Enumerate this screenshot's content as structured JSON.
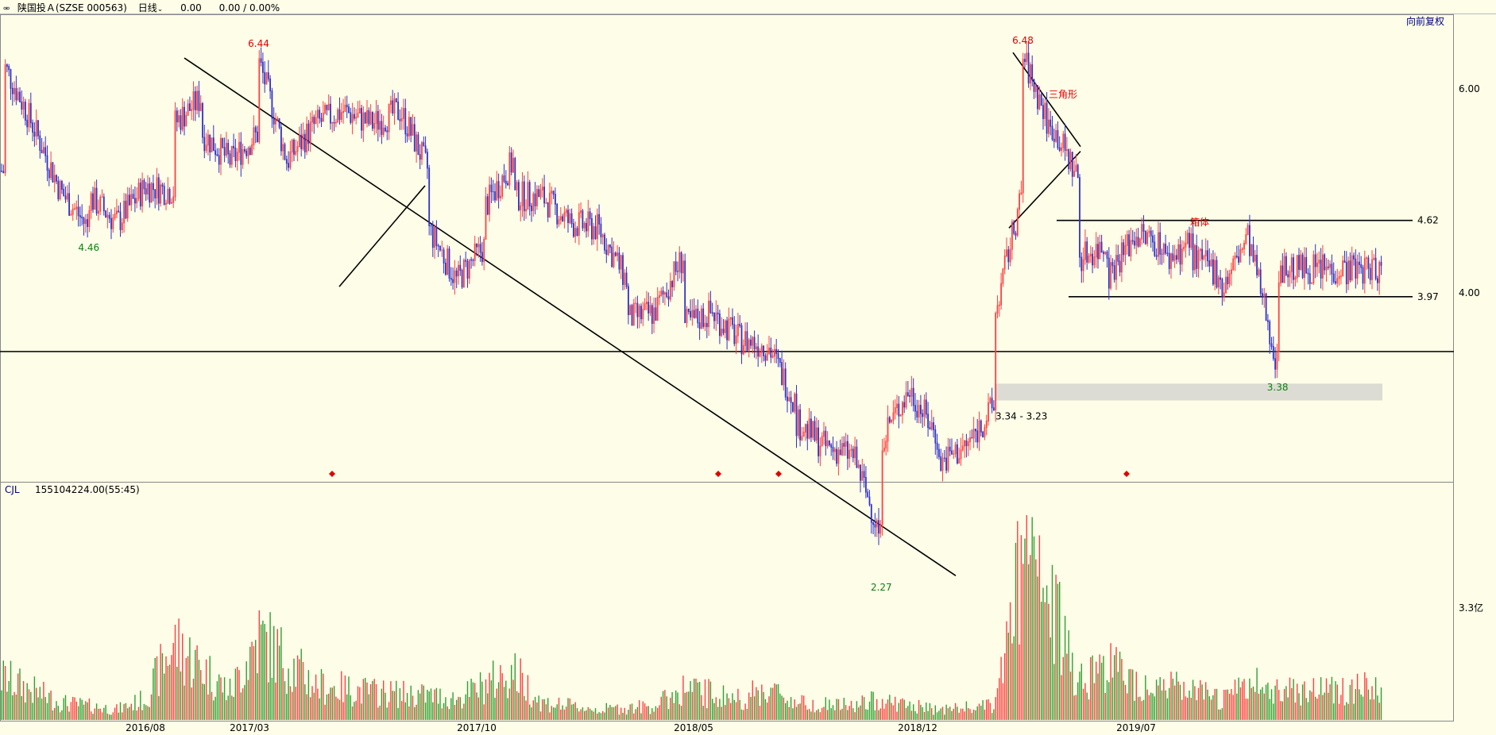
{
  "header": {
    "icon": "chain-link-icon",
    "stock": "陕国投Ａ(SZSE 000563)",
    "period": "日线",
    "change": "0.00",
    "change_pct": "0.00 / 0.00%",
    "adjust": "向前复权"
  },
  "chart_data": [
    {
      "type": "candlestick",
      "title": "陕国投Ａ(SZSE 000563)",
      "x_ticks": [
        "2016/08",
        "2017/03",
        "2017/10",
        "2018/05",
        "2018/12",
        "2019/07"
      ],
      "y_ticks": [
        "6.00",
        "4.00"
      ],
      "ylim": [
        2.0,
        6.8
      ],
      "grid": false,
      "price_labels": [
        {
          "label": "6.44",
          "date": "2016/12",
          "value": 6.44,
          "kind": "high"
        },
        {
          "label": "4.46",
          "date": "2016/06",
          "value": 4.46,
          "kind": "low"
        },
        {
          "label": "6.48",
          "date": "2019/03",
          "value": 6.48,
          "kind": "high"
        },
        {
          "label": "2.27",
          "date": "2018/10",
          "value": 2.27,
          "kind": "low"
        },
        {
          "label": "3.38",
          "date": "2019/12",
          "value": 3.38,
          "kind": "low"
        }
      ],
      "level_labels": [
        {
          "label": "4.62",
          "value": 4.62
        },
        {
          "label": "3.97",
          "value": 3.97
        }
      ],
      "support_line": 3.56,
      "gap_zone": {
        "label": "3.34 - 3.23",
        "low": 3.23,
        "high": 3.34
      },
      "annotations": [
        "三角形",
        "箱体"
      ],
      "series": [
        {
          "name": "close",
          "points": [
            [
              "2016/03",
              5.1
            ],
            [
              "2016/03",
              6.3
            ],
            [
              "2016/04",
              5.6
            ],
            [
              "2016/05",
              4.9
            ],
            [
              "2016/06",
              4.55
            ],
            [
              "2016/06",
              4.85
            ],
            [
              "2016/07",
              4.6
            ],
            [
              "2016/08",
              4.95
            ],
            [
              "2016/09",
              4.9
            ],
            [
              "2016/09",
              5.6
            ],
            [
              "2016/10",
              5.9
            ],
            [
              "2016/10",
              5.5
            ],
            [
              "2016/11",
              5.2
            ],
            [
              "2016/12",
              5.5
            ],
            [
              "2016/12",
              6.35
            ],
            [
              "2017/01",
              5.2
            ],
            [
              "2017/02",
              5.6
            ],
            [
              "2017/03",
              5.75
            ],
            [
              "2017/04",
              5.6
            ],
            [
              "2017/05",
              5.75
            ],
            [
              "2017/06",
              5.1
            ],
            [
              "2017/06",
              4.55
            ],
            [
              "2017/07",
              4.1
            ],
            [
              "2017/08",
              4.4
            ],
            [
              "2017/08",
              4.75
            ],
            [
              "2017/09",
              5.2
            ],
            [
              "2017/09",
              4.85
            ],
            [
              "2017/10",
              4.85
            ],
            [
              "2017/11",
              4.6
            ],
            [
              "2017/12",
              4.55
            ],
            [
              "2018/01",
              4.1
            ],
            [
              "2018/01",
              3.8
            ],
            [
              "2018/02",
              3.85
            ],
            [
              "2018/03",
              4.3
            ],
            [
              "2018/03",
              3.75
            ],
            [
              "2018/04",
              3.85
            ],
            [
              "2018/05",
              3.65
            ],
            [
              "2018/06",
              3.6
            ],
            [
              "2018/07",
              3.2
            ],
            [
              "2018/07",
              3.1
            ],
            [
              "2018/08",
              2.95
            ],
            [
              "2018/09",
              2.9
            ],
            [
              "2018/10",
              2.45
            ],
            [
              "2018/10",
              3.0
            ],
            [
              "2018/11",
              3.3
            ],
            [
              "2018/12",
              3.0
            ],
            [
              "2018/12",
              2.85
            ],
            [
              "2019/01",
              2.95
            ],
            [
              "2019/02",
              3.2
            ],
            [
              "2019/02",
              3.8
            ],
            [
              "2019/03",
              4.9
            ],
            [
              "2019/03",
              6.4
            ],
            [
              "2019/04",
              5.5
            ],
            [
              "2019/04",
              5.6
            ],
            [
              "2019/05",
              5.0
            ],
            [
              "2019/05",
              4.3
            ],
            [
              "2019/06",
              4.4
            ],
            [
              "2019/06",
              4.15
            ],
            [
              "2019/07",
              4.5
            ],
            [
              "2019/08",
              4.4
            ],
            [
              "2019/08",
              4.25
            ],
            [
              "2019/09",
              4.45
            ],
            [
              "2019/09",
              4.3
            ],
            [
              "2019/10",
              4.15
            ],
            [
              "2019/10",
              4.0
            ],
            [
              "2019/11",
              4.5
            ],
            [
              "2019/11",
              4.4
            ],
            [
              "2019/12",
              3.45
            ],
            [
              "2019/12",
              3.95
            ],
            [
              "2019/12",
              4.2
            ]
          ]
        }
      ]
    },
    {
      "type": "bar",
      "title": "CJL",
      "value_label": "155104224.00(55:45)",
      "y_ticks": [
        "3.3亿"
      ],
      "ylim": [
        0,
        4.8
      ],
      "series": [
        {
          "name": "volume",
          "unit": "亿",
          "points": [
            [
              "2016/03",
              1.2
            ],
            [
              "2016/05",
              0.5
            ],
            [
              "2016/07",
              0.3
            ],
            [
              "2016/08",
              0.6
            ],
            [
              "2016/09",
              2.2
            ],
            [
              "2016/10",
              1.5
            ],
            [
              "2016/11",
              0.8
            ],
            [
              "2016/12",
              2.4
            ],
            [
              "2017/02",
              1.0
            ],
            [
              "2017/04",
              0.8
            ],
            [
              "2017/06",
              0.7
            ],
            [
              "2017/07",
              0.6
            ],
            [
              "2017/09",
              1.4
            ],
            [
              "2017/10",
              0.5
            ],
            [
              "2017/12",
              0.3
            ],
            [
              "2018/02",
              0.4
            ],
            [
              "2018/03",
              0.9
            ],
            [
              "2018/05",
              0.6
            ],
            [
              "2018/06",
              0.9
            ],
            [
              "2018/07",
              0.5
            ],
            [
              "2018/09",
              0.4
            ],
            [
              "2018/10",
              0.6
            ],
            [
              "2018/11",
              0.4
            ],
            [
              "2018/12",
              0.3
            ],
            [
              "2019/02",
              0.4
            ],
            [
              "2019/03",
              4.6
            ],
            [
              "2019/04",
              3.2
            ],
            [
              "2019/05",
              1.2
            ],
            [
              "2019/06",
              1.6
            ],
            [
              "2019/07",
              1.1
            ],
            [
              "2019/08",
              1.0
            ],
            [
              "2019/09",
              0.8
            ],
            [
              "2019/10",
              0.6
            ],
            [
              "2019/11",
              1.0
            ],
            [
              "2019/12",
              0.9
            ]
          ]
        }
      ]
    }
  ],
  "colors": {
    "background": "#fdfde8",
    "up": "#ff4040",
    "down": "#3030c8",
    "vol_up": "#ff4040",
    "vol_down": "#30a030",
    "trend_line": "#000000",
    "label_high": "#e00000",
    "label_low": "#108010",
    "marker": "#e00000",
    "gap_zone": "#dcdcd4"
  }
}
